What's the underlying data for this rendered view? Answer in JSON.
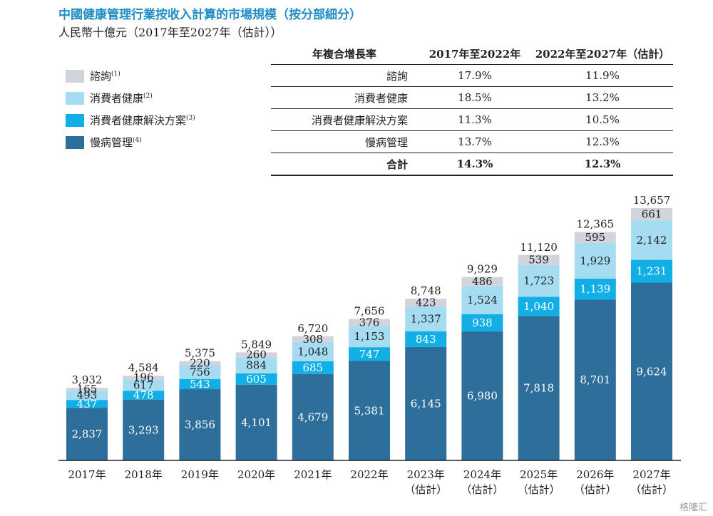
{
  "title": "中國健康管理行業按收入計算的市場規模（按分部細分）",
  "subtitle": "人民幣十億元（2017年至2027年（估計））",
  "legend": [
    {
      "label": "諮詢",
      "note": "(1)",
      "color": "#d2d4dc"
    },
    {
      "label": "消費者健康",
      "note": "(2)",
      "color": "#a6dcf2"
    },
    {
      "label": "消費者健康解決方案",
      "note": "(3)",
      "color": "#12aee6"
    },
    {
      "label": "慢病管理",
      "note": "(4)",
      "color": "#2d6f9a"
    }
  ],
  "cagr_table": {
    "headers": [
      "年複合增長率",
      "2017年至2022年",
      "2022年至2027年（估計）"
    ],
    "rows": [
      [
        "諮詢",
        "17.9%",
        "11.9%"
      ],
      [
        "消費者健康",
        "18.5%",
        "13.2%"
      ],
      [
        "消費者健康解決方案",
        "11.3%",
        "10.5%"
      ],
      [
        "慢病管理",
        "13.7%",
        "12.3%"
      ]
    ],
    "total": [
      "合計",
      "14.3%",
      "12.3%"
    ]
  },
  "chart_data": {
    "type": "bar",
    "stacked": true,
    "categories": [
      "2017年",
      "2018年",
      "2019年",
      "2020年",
      "2021年",
      "2022年",
      "2023年（估計）",
      "2024年（估計）",
      "2025年（估計）",
      "2026年（估計）",
      "2027年（估計）"
    ],
    "category_lines": [
      [
        "2017年"
      ],
      [
        "2018年"
      ],
      [
        "2019年"
      ],
      [
        "2020年"
      ],
      [
        "2021年"
      ],
      [
        "2022年"
      ],
      [
        "2023年",
        "（估計）"
      ],
      [
        "2024年",
        "（估計）"
      ],
      [
        "2025年",
        "（估計）"
      ],
      [
        "2026年",
        "（估計）"
      ],
      [
        "2027年",
        "（估計）"
      ]
    ],
    "series": [
      {
        "name": "慢病管理",
        "color": "#2d6f9a",
        "label_color": "#ffffff",
        "values": [
          2837,
          3293,
          3856,
          4101,
          4679,
          5381,
          6145,
          6980,
          7818,
          8701,
          9624
        ]
      },
      {
        "name": "消費者健康解決方案",
        "color": "#12aee6",
        "label_color": "#ffffff",
        "values": [
          437,
          478,
          543,
          605,
          685,
          747,
          843,
          938,
          1040,
          1139,
          1231
        ]
      },
      {
        "name": "消費者健康",
        "color": "#a6dcf2",
        "label_color": "#222222",
        "values": [
          493,
          617,
          756,
          884,
          1048,
          1153,
          1337,
          1524,
          1723,
          1929,
          2142
        ]
      },
      {
        "name": "諮詢",
        "color": "#d2d4dc",
        "label_color": "#222222",
        "values": [
          165,
          196,
          220,
          260,
          308,
          376,
          423,
          486,
          539,
          595,
          661
        ]
      }
    ],
    "totals": [
      3932,
      4584,
      5375,
      5849,
      6720,
      7656,
      8748,
      9929,
      11120,
      12365,
      13657
    ],
    "ylim": [
      0,
      13657
    ]
  },
  "watermark": "格隆汇"
}
